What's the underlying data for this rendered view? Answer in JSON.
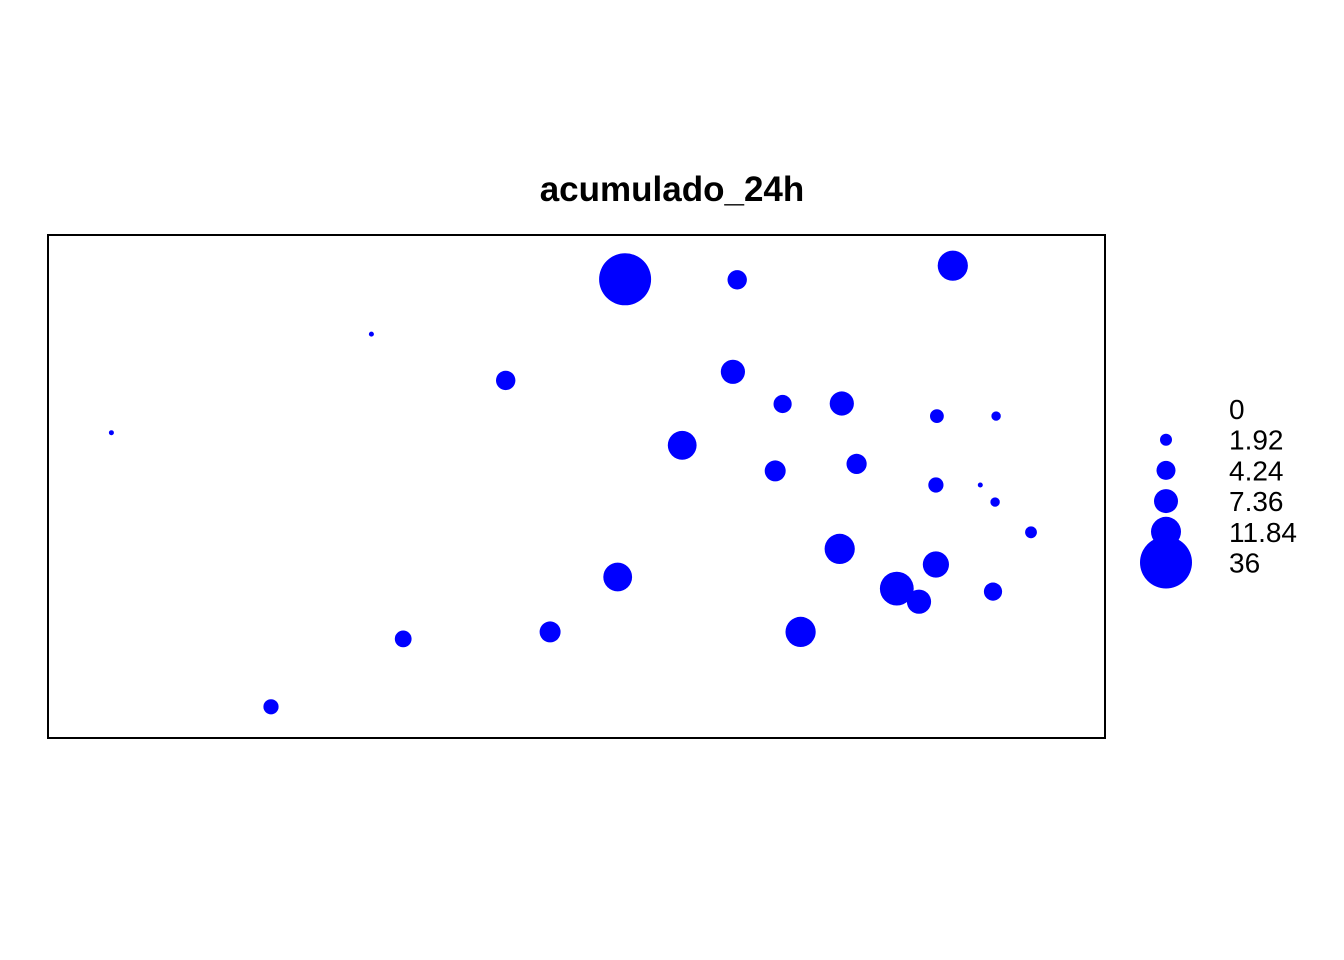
{
  "chart_data": {
    "type": "scatter",
    "title": "acumulado_24h",
    "xlabel": "",
    "ylabel": "",
    "grid": false,
    "legend_position": "right",
    "colors": {
      "points": "#0000ff",
      "frame": "#000000",
      "background": "#ffffff"
    },
    "size_legend": {
      "labels": [
        "0",
        "1.92",
        "4.24",
        "7.36",
        "11.84",
        "36"
      ],
      "values": [
        0,
        1.92,
        4.24,
        7.36,
        11.84,
        36
      ]
    },
    "points": [
      {
        "x": 0.06,
        "y": 0.607,
        "value": 0.2
      },
      {
        "x": 0.211,
        "y": 0.062,
        "value": 3.0
      },
      {
        "x": 0.306,
        "y": 0.803,
        "value": 0.5
      },
      {
        "x": 0.336,
        "y": 0.197,
        "value": 3.5
      },
      {
        "x": 0.433,
        "y": 0.711,
        "value": 4.5
      },
      {
        "x": 0.475,
        "y": 0.211,
        "value": 5.5
      },
      {
        "x": 0.539,
        "y": 0.32,
        "value": 11.0
      },
      {
        "x": 0.546,
        "y": 0.912,
        "value": 36.0
      },
      {
        "x": 0.6,
        "y": 0.582,
        "value": 11.0
      },
      {
        "x": 0.648,
        "y": 0.728,
        "value": 7.5
      },
      {
        "x": 0.652,
        "y": 0.911,
        "value": 4.5
      },
      {
        "x": 0.688,
        "y": 0.531,
        "value": 5.5
      },
      {
        "x": 0.695,
        "y": 0.664,
        "value": 4.0
      },
      {
        "x": 0.712,
        "y": 0.211,
        "value": 12.0
      },
      {
        "x": 0.749,
        "y": 0.376,
        "value": 12.0
      },
      {
        "x": 0.751,
        "y": 0.665,
        "value": 7.5
      },
      {
        "x": 0.765,
        "y": 0.545,
        "value": 5.0
      },
      {
        "x": 0.803,
        "y": 0.297,
        "value": 16.0
      },
      {
        "x": 0.824,
        "y": 0.271,
        "value": 7.5
      },
      {
        "x": 0.84,
        "y": 0.345,
        "value": 9.0
      },
      {
        "x": 0.84,
        "y": 0.503,
        "value": 3.0
      },
      {
        "x": 0.841,
        "y": 0.64,
        "value": 2.5
      },
      {
        "x": 0.856,
        "y": 0.939,
        "value": 12.0
      },
      {
        "x": 0.882,
        "y": 0.503,
        "value": 0.6
      },
      {
        "x": 0.894,
        "y": 0.291,
        "value": 4.0
      },
      {
        "x": 0.896,
        "y": 0.469,
        "value": 1.5
      },
      {
        "x": 0.897,
        "y": 0.64,
        "value": 1.5
      },
      {
        "x": 0.93,
        "y": 0.409,
        "value": 1.9
      }
    ]
  }
}
